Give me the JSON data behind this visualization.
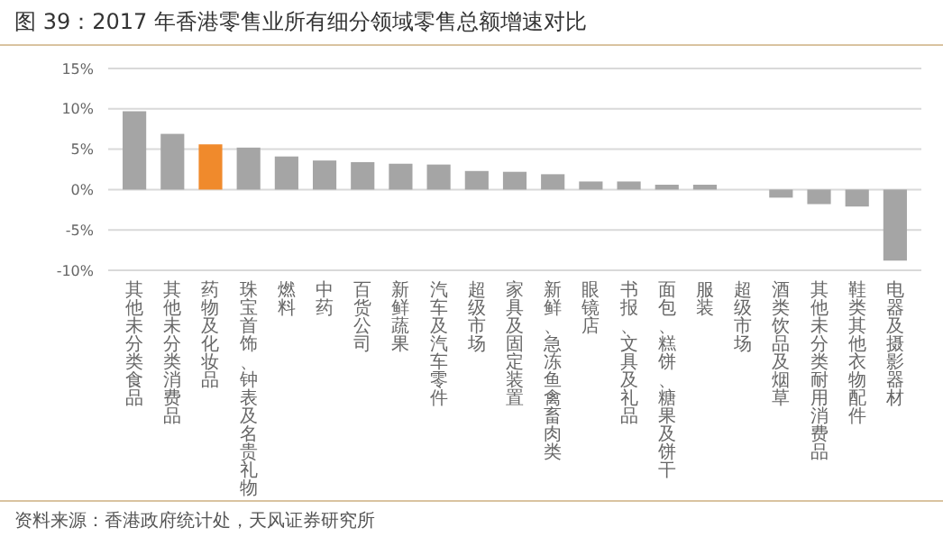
{
  "chart_data": {
    "type": "bar",
    "title": "图 39：2017 年香港零售业所有细分领域零售总额增速对比",
    "categories": [
      "其他未分类食品",
      "其他未分类消费品",
      "药物及化妆品",
      "珠宝首饰、钟表及名贵礼物",
      "燃料",
      "中药",
      "百货公司",
      "新鲜蔬果",
      "汽车及汽车零件",
      "超级市场",
      "家具及固定装置",
      "新鲜、急冻鱼禽畜肉类",
      "眼镜店",
      "书报、文具及礼品",
      "面包、糕饼、糖果及饼干",
      "服装",
      "超级市场",
      "酒类饮品及烟草",
      "其他未分类耐用消费品",
      "鞋类其他衣物配件",
      "电器及摄影器材"
    ],
    "values": [
      9.7,
      6.9,
      5.6,
      5.2,
      4.1,
      3.6,
      3.4,
      3.2,
      3.1,
      2.3,
      2.2,
      1.9,
      1.0,
      1.0,
      0.6,
      0.6,
      0,
      -1.0,
      -1.8,
      -2.1,
      -8.8
    ],
    "colors": [
      "#a5a5a5",
      "#a5a5a5",
      "#f08a2c",
      "#a5a5a5",
      "#a5a5a5",
      "#a5a5a5",
      "#a5a5a5",
      "#a5a5a5",
      "#a5a5a5",
      "#a5a5a5",
      "#a5a5a5",
      "#a5a5a5",
      "#a5a5a5",
      "#a5a5a5",
      "#a5a5a5",
      "#a5a5a5",
      "#a5a5a5",
      "#a5a5a5",
      "#a5a5a5",
      "#a5a5a5",
      "#a5a5a5"
    ],
    "ylim": [
      -10,
      15
    ],
    "yticks": [
      {
        "value": -10,
        "label": "-10%"
      },
      {
        "value": -5,
        "label": "-5%"
      },
      {
        "value": 0,
        "label": "0%"
      },
      {
        "value": 5,
        "label": "5%"
      },
      {
        "value": 10,
        "label": "10%"
      },
      {
        "value": 15,
        "label": "15%"
      }
    ],
    "grid": "y",
    "annotations": [
      "资料来源：香港政府统计处，天风证券研究所"
    ]
  }
}
